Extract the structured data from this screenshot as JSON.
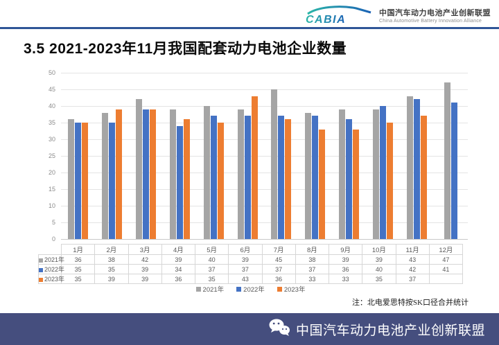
{
  "header": {
    "logo_text": "CABIA",
    "org_name_zh": "中国汽车动力电池产业创新联盟",
    "org_name_en": "China Automotive Battery Innovation Alliance"
  },
  "title": "3.5 2021-2023年11月我国配套动力电池企业数量",
  "chart_data": {
    "type": "bar",
    "categories": [
      "1月",
      "2月",
      "3月",
      "4月",
      "5月",
      "6月",
      "7月",
      "8月",
      "9月",
      "10月",
      "11月",
      "12月"
    ],
    "series": [
      {
        "name": "2021年",
        "color": "#A5A5A5",
        "values": [
          36,
          38,
          42,
          39,
          40,
          39,
          45,
          38,
          39,
          39,
          43,
          47
        ]
      },
      {
        "name": "2022年",
        "color": "#4472C4",
        "values": [
          35,
          35,
          39,
          34,
          37,
          37,
          37,
          37,
          36,
          40,
          42,
          41
        ]
      },
      {
        "name": "2023年",
        "color": "#ED7D31",
        "values": [
          35,
          39,
          39,
          36,
          35,
          43,
          36,
          33,
          33,
          35,
          37,
          null
        ]
      }
    ],
    "title": "",
    "xlabel": "",
    "ylabel": "",
    "ylim": [
      0,
      50
    ],
    "ytick_step": 5,
    "grid": true,
    "legend_position": "bottom",
    "data_table_shown": true
  },
  "note": "注：北电爱思特按SK口径合并统计",
  "footer": {
    "text": "中国汽车动力电池产业创新联盟"
  },
  "colors": {
    "divider": "#2F5597",
    "footer_bg": "#454E7E",
    "bar_2021": "#A5A5A5",
    "bar_2022": "#4472C4",
    "bar_2023": "#ED7D31"
  }
}
